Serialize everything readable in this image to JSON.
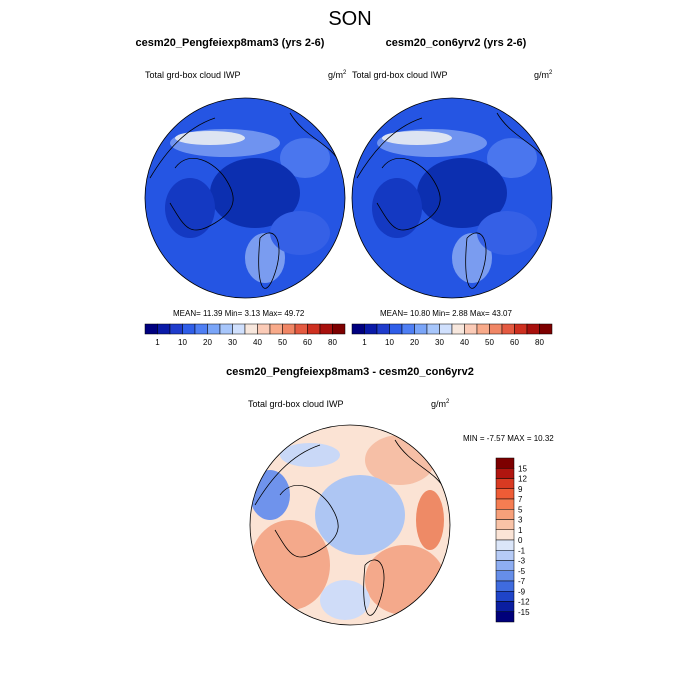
{
  "figure": {
    "title": "SON",
    "diff_title": "cesm20_Pengfeiexp8mam3 - cesm20_con6yrv2"
  },
  "chart_data": [
    {
      "type": "heatmap",
      "projection": "north-polar-stereographic",
      "title": "cesm20_Pengfeiexp8mam3 (yrs 2-6)",
      "left_label": "Total grd-box cloud IWP",
      "units": "g/m",
      "units_sup": "2",
      "stats": {
        "mean_label": "MEAN=",
        "mean": "11.39",
        "min_label": "Min=",
        "min": "3.13",
        "max_label": "Max=",
        "max": "49.72"
      },
      "colorbar": {
        "orientation": "horizontal",
        "labels": [
          "1",
          "10",
          "20",
          "30",
          "40",
          "50",
          "60",
          "80"
        ],
        "colors": [
          "#00007f",
          "#0a1aa8",
          "#1f3ccc",
          "#2f5ee8",
          "#4f7ff4",
          "#7aa5f8",
          "#a7c6fb",
          "#d0e0fd",
          "#f7e7dd",
          "#fbcbb7",
          "#f8aa8a",
          "#f08665",
          "#e45a41",
          "#ce3020",
          "#a8100d",
          "#7d0000"
        ]
      },
      "field": {
        "background": "#2555e3",
        "pole_minimum": "#0c2fb0",
        "greenland_maximum": "#dde4f2"
      }
    },
    {
      "type": "heatmap",
      "projection": "north-polar-stereographic",
      "title": "cesm20_con6yrv2 (yrs 2-6)",
      "left_label": "Total grd-box cloud IWP",
      "units": "g/m",
      "units_sup": "2",
      "stats": {
        "mean_label": "MEAN=",
        "mean": "10.80",
        "min_label": "Min=",
        "min": "2.88",
        "max_label": "Max=",
        "max": "43.07"
      },
      "colorbar": {
        "orientation": "horizontal",
        "labels": [
          "1",
          "10",
          "20",
          "30",
          "40",
          "50",
          "60",
          "80"
        ],
        "colors": [
          "#00007f",
          "#0a1aa8",
          "#1f3ccc",
          "#2f5ee8",
          "#4f7ff4",
          "#7aa5f8",
          "#a7c6fb",
          "#d0e0fd",
          "#f7e7dd",
          "#fbcbb7",
          "#f8aa8a",
          "#f08665",
          "#e45a41",
          "#ce3020",
          "#a8100d",
          "#7d0000"
        ]
      },
      "field": {
        "background": "#2555e3",
        "pole_minimum": "#0c2fb0",
        "greenland_maximum": "#dde4f2"
      }
    },
    {
      "type": "heatmap",
      "projection": "north-polar-stereographic",
      "title": "",
      "left_label": "Total grd-box cloud IWP",
      "units": "g/m",
      "units_sup": "2",
      "stats": {
        "min_label": "MIN =",
        "min": "-7.57",
        "max_label": "MAX =",
        "max": "10.32"
      },
      "colorbar": {
        "orientation": "vertical",
        "labels": [
          "15",
          "12",
          "9",
          "7",
          "5",
          "3",
          "1",
          "0",
          "-1",
          "-3",
          "-5",
          "-7",
          "-9",
          "-12",
          "-15"
        ],
        "colors": [
          "#7d0000",
          "#b0150f",
          "#d83a22",
          "#ee5c36",
          "#f57d52",
          "#f7a07a",
          "#f9c3a7",
          "#fbe4d6",
          "#dbe6f9",
          "#b6cbf6",
          "#8eaef2",
          "#668ee9",
          "#3f6bde",
          "#1f44c8",
          "#0a1ea0",
          "#00007a"
        ]
      },
      "field": {
        "background": "#fbe3d4",
        "positive": "#f4a98b",
        "negative": "#aec6f3"
      }
    }
  ]
}
